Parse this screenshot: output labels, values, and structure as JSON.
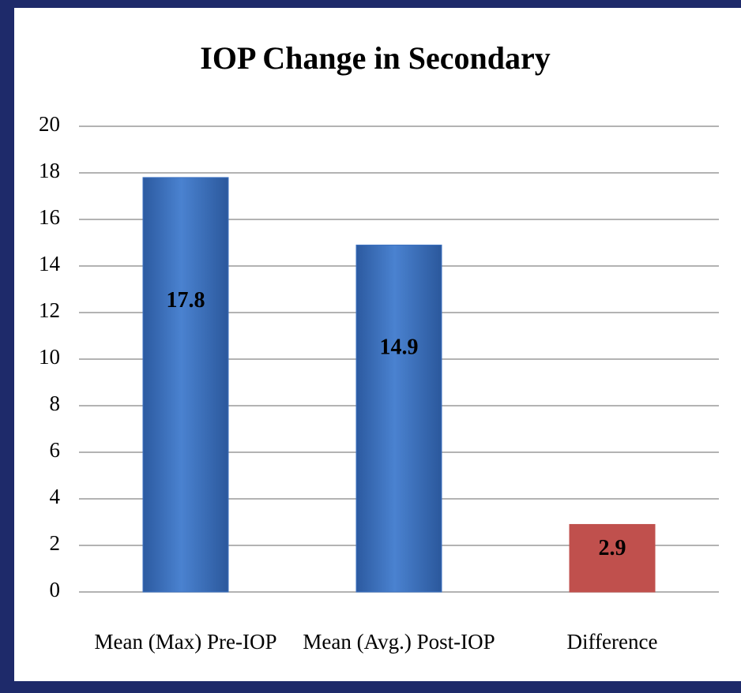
{
  "chart_data": {
    "type": "bar",
    "title": "IOP Change in Secondary",
    "categories": [
      "Mean (Max) Pre-IOP",
      "Mean (Avg.) Post-IOP",
      "Difference"
    ],
    "values": [
      17.8,
      14.9,
      2.9
    ],
    "colors": [
      "#3c72c2",
      "#3c72c2",
      "#c0504d"
    ],
    "ylim": [
      0,
      20
    ],
    "yticks": [
      0,
      2,
      4,
      6,
      8,
      10,
      12,
      14,
      16,
      18,
      20
    ],
    "grid": true
  }
}
